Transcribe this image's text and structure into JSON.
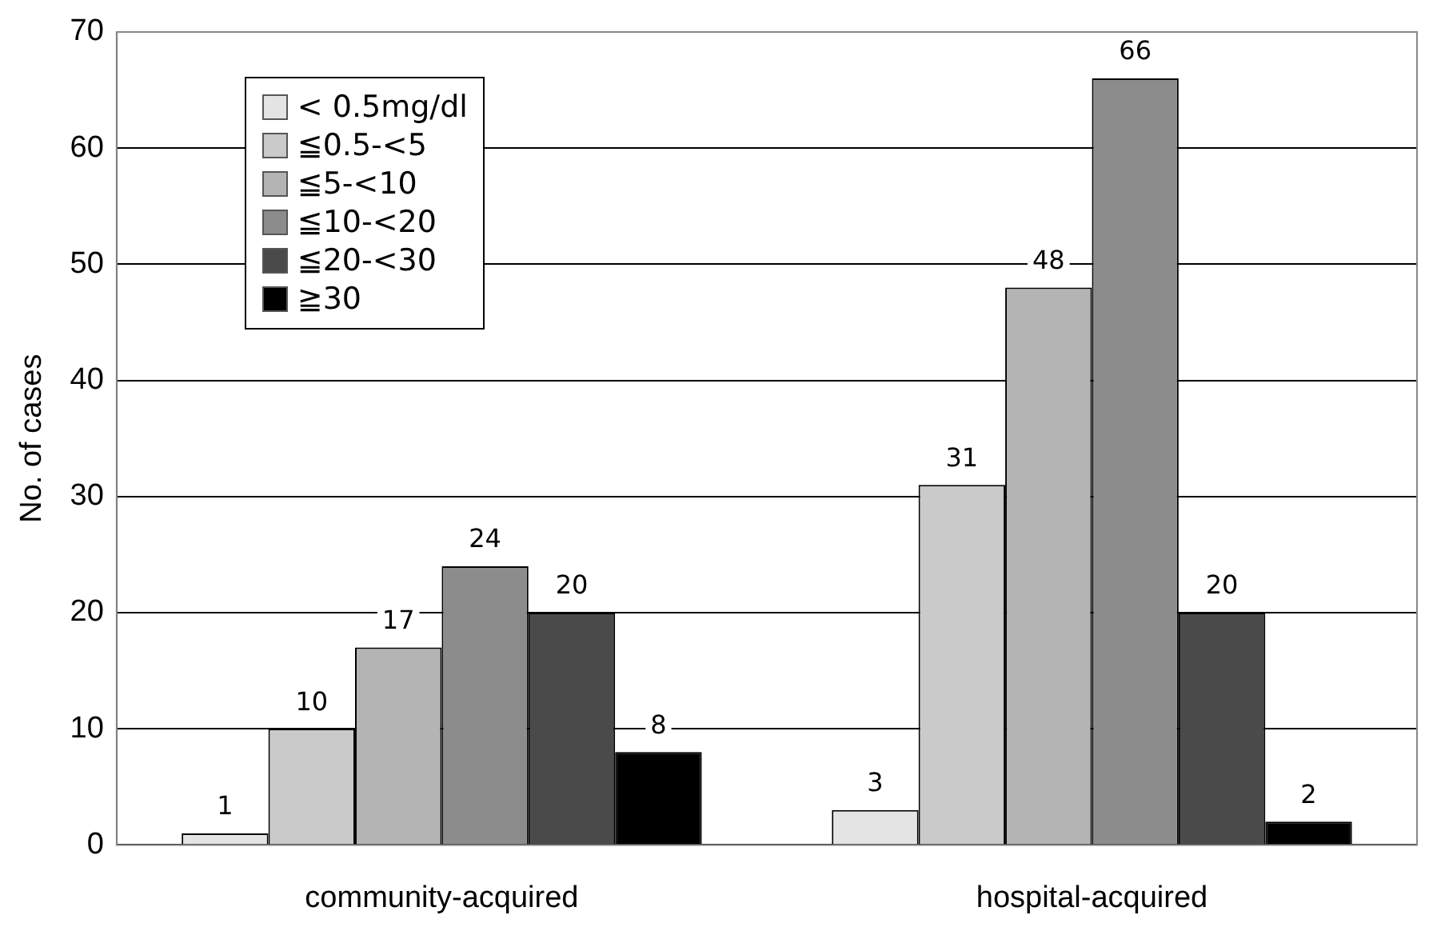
{
  "chart_data": {
    "type": "bar",
    "ylabel": "No. of cases",
    "categories": [
      "community-acquired",
      "hospital-acquired"
    ],
    "series": [
      {
        "name": "< 0.5mg/dl",
        "color": "#e4e4e4",
        "values": [
          1,
          3
        ]
      },
      {
        "name": "≦0.5-<5",
        "color": "#cacaca",
        "values": [
          10,
          31
        ]
      },
      {
        "name": "≦5-<10",
        "color": "#b4b4b4",
        "values": [
          17,
          48
        ]
      },
      {
        "name": "≦10-<20",
        "color": "#8c8c8c",
        "values": [
          24,
          66
        ]
      },
      {
        "name": "≦20-<30",
        "color": "#4a4a4a",
        "values": [
          20,
          20
        ]
      },
      {
        "name": "≧30",
        "color": "#000000",
        "values": [
          8,
          2
        ]
      }
    ],
    "ylim": [
      0,
      70
    ],
    "yticks": [
      0,
      10,
      20,
      30,
      40,
      50,
      60,
      70
    ],
    "grid": "y",
    "legend": "top left",
    "data_labels": true
  }
}
